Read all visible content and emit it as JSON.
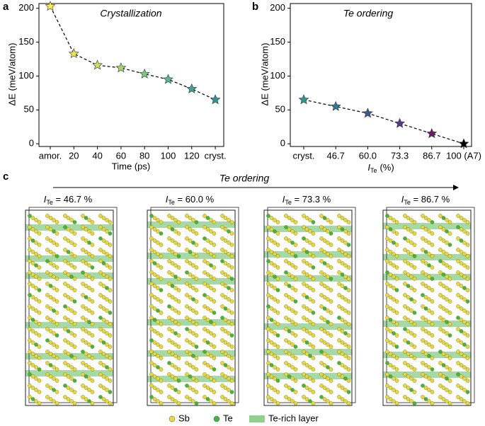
{
  "chart_data": [
    {
      "type": "line",
      "panel": "a",
      "annotation": "Crystallization",
      "xlabel": "Time (ps)",
      "ylabel": "ΔE (meV/atom)",
      "categories": [
        "amor.",
        "20",
        "40",
        "60",
        "80",
        "100",
        "120",
        "cryst."
      ],
      "values": [
        203,
        133,
        116,
        112,
        103,
        95,
        81,
        65
      ],
      "colors": [
        "#f7ee4a",
        "#e6e84e",
        "#c6df5c",
        "#a4d46c",
        "#7cc67e",
        "#58b78e",
        "#3ea596",
        "#2f9597"
      ],
      "ylim": [
        -4,
        207
      ],
      "yticks": [
        0,
        50,
        100,
        150,
        200
      ]
    },
    {
      "type": "line",
      "panel": "b",
      "annotation": "Te ordering",
      "xlabel": {
        "symbol": "I",
        "subscript": "Te",
        "unit": "(%)"
      },
      "ylabel": "ΔE (meV/atom)",
      "categories": [
        "cryst.",
        "46.7",
        "60.0",
        "73.3",
        "86.7",
        "100 (A7)"
      ],
      "values": [
        65,
        55,
        45,
        30,
        15,
        0
      ],
      "colors": [
        "#2f9597",
        "#2e7898",
        "#3a5896",
        "#553a8a",
        "#6a1c68",
        "#000000"
      ],
      "ylim": [
        -4,
        207
      ],
      "yticks": [
        0,
        50,
        100,
        150,
        200
      ]
    }
  ],
  "structures": {
    "panel": "c",
    "arrow_label": "Te ordering",
    "labels": [
      {
        "symbol": "I",
        "subscript": "Te",
        "text": " = 46.7 %"
      },
      {
        "symbol": "I",
        "subscript": "Te",
        "text": " = 60.0 %"
      },
      {
        "symbol": "I",
        "subscript": "Te",
        "text": " = 73.3 %"
      },
      {
        "symbol": "I",
        "subscript": "Te",
        "text": " = 86.7 %"
      }
    ],
    "legend": [
      {
        "name": "Sb",
        "color": "#e8d93a"
      },
      {
        "name": "Te",
        "color": "#3cb83c"
      },
      {
        "name": "Te-rich layer",
        "color": "#8fd08f"
      }
    ]
  }
}
